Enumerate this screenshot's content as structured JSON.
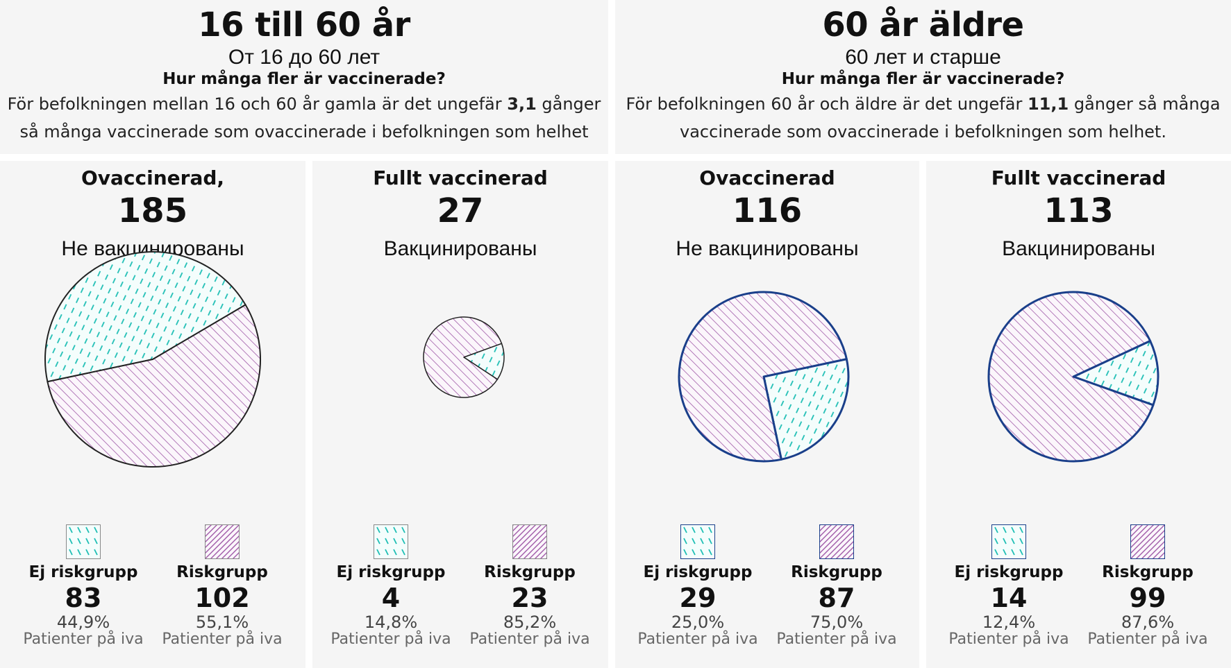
{
  "colors": {
    "riskgrupp": "#a05aa8",
    "ej_riskgrupp": "#1fbfb5",
    "outline_left": "#222222",
    "outline_right": "#1a3f8a",
    "panel_bg": "#f5f5f5"
  },
  "groups": [
    {
      "title": "16 till 60 år",
      "subtitle_ru": "От 16 до 60 лет",
      "question": "Hur många fler är vaccinerade?",
      "desc_pre": "För befolkningen mellan 16 och 60 år gamla är det ungefär ",
      "desc_bold": "3,1",
      "desc_post": " gånger så många vaccinerade som ovaccinerade i befolkningen som helhet"
    },
    {
      "title": "60 år äldre",
      "subtitle_ru": "60 лет и старше",
      "question": "Hur många fler är vaccinerade?",
      "desc_pre": "För befolkningen 60 år och äldre är det ungefär ",
      "desc_bold": "11,1",
      "desc_post": " gånger så många vaccinerade som ovaccinerade i befolkningen som helhet."
    }
  ],
  "legend_caption": "Patienter på iva",
  "chart_data": [
    {
      "type": "pie",
      "group": "16 till 60 år",
      "title": "Ovaccinerad,",
      "subtitle": "Не вакцинированы",
      "total": 185,
      "slices": [
        {
          "label": "Ej riskgrupp",
          "value": 83,
          "percent": "44,9%"
        },
        {
          "label": "Riskgrupp",
          "value": 102,
          "percent": "55,1%"
        }
      ]
    },
    {
      "type": "pie",
      "group": "16 till 60 år",
      "title": "Fullt vaccinerad",
      "subtitle": "Вакцинированы",
      "total": 27,
      "slices": [
        {
          "label": "Ej riskgrupp",
          "value": 4,
          "percent": "14,8%"
        },
        {
          "label": "Riskgrupp",
          "value": 23,
          "percent": "85,2%"
        }
      ]
    },
    {
      "type": "pie",
      "group": "60 år äldre",
      "title": "Ovaccinerad",
      "subtitle": "Не вакцинированы",
      "total": 116,
      "slices": [
        {
          "label": "Ej riskgrupp",
          "value": 29,
          "percent": "25,0%"
        },
        {
          "label": "Riskgrupp",
          "value": 87,
          "percent": "75,0%"
        }
      ]
    },
    {
      "type": "pie",
      "group": "60 år äldre",
      "title": "Fullt vaccinerad",
      "subtitle": "Вакцинированы",
      "total": 113,
      "slices": [
        {
          "label": "Ej riskgrupp",
          "value": 14,
          "percent": "12,4%"
        },
        {
          "label": "Riskgrupp",
          "value": 99,
          "percent": "87,6%"
        }
      ]
    }
  ]
}
